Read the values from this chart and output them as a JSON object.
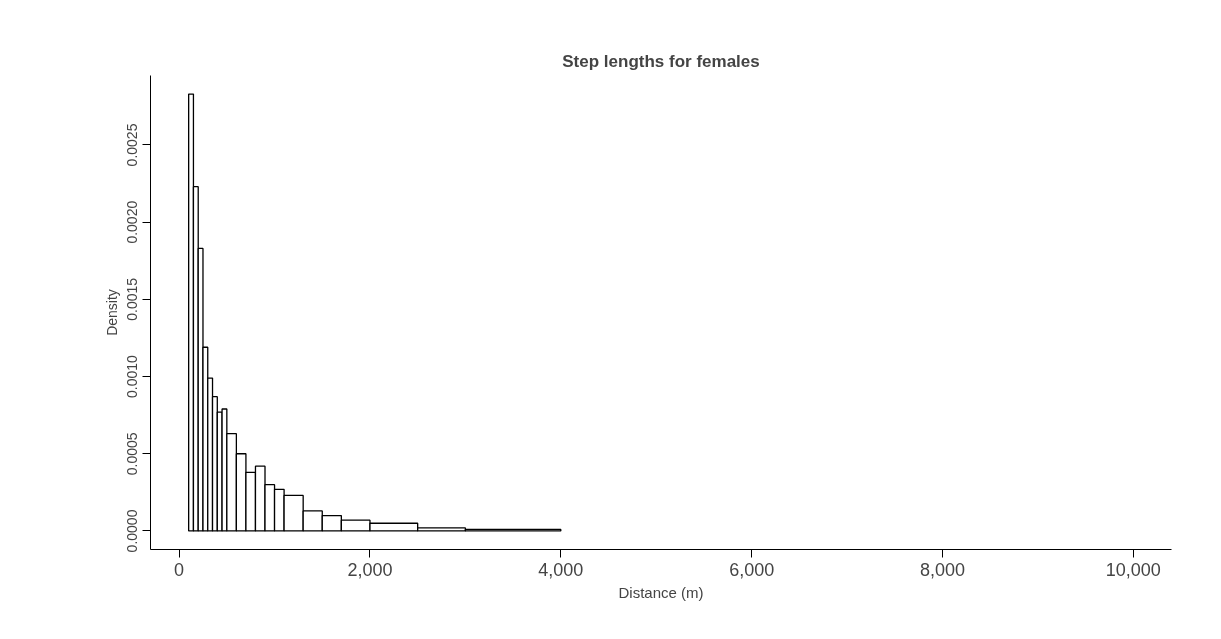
{
  "chart_data": {
    "type": "histogram",
    "title": "Step lengths for females",
    "xlabel": "Distance (m)",
    "ylabel": "Density",
    "bins": [
      100,
      150,
      200,
      250,
      300,
      350,
      400,
      450,
      500,
      600,
      700,
      800,
      900,
      1000,
      1100,
      1300,
      1500,
      1700,
      2000,
      2500,
      3000,
      4000
    ],
    "values": [
      0.00283,
      0.00223,
      0.00183,
      0.00119,
      0.00099,
      0.00087,
      0.00077,
      0.00079,
      0.00063,
      0.0005,
      0.00038,
      0.00042,
      0.0003,
      0.00027,
      0.00023,
      0.00013,
      0.0001,
      7e-05,
      5e-05,
      2e-05,
      1e-05
    ],
    "color": "#ffffff",
    "xlim": [
      -300,
      10400
    ],
    "ylim": [
      -0.00012,
      0.00295
    ],
    "xticks": [
      0,
      {
        "value": 2000,
        "label": "2,000"
      },
      {
        "value": 4000,
        "label": "4,000"
      },
      {
        "value": 6000,
        "label": "6,000"
      },
      {
        "value": 8000,
        "label": "8,000"
      },
      {
        "value": 10000,
        "label": "10,000"
      }
    ],
    "yticks": [
      {
        "value": 0,
        "label": "0.0000"
      },
      0.0005,
      {
        "value": 0.001,
        "label": "0.0010"
      },
      0.0015,
      {
        "value": 0.002,
        "label": "0.0020"
      },
      0.0025
    ],
    "grid": false
  }
}
